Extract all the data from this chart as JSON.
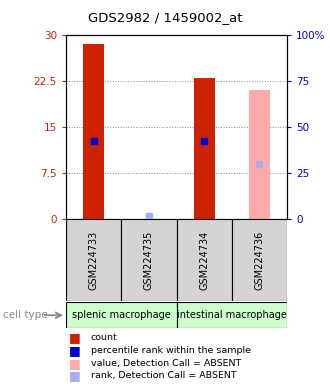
{
  "title": "GDS2982 / 1459002_at",
  "samples": [
    "GSM224733",
    "GSM224735",
    "GSM224734",
    "GSM224736"
  ],
  "cell_types": [
    {
      "label": "splenic macrophage",
      "start": 0,
      "end": 2,
      "color": "#ccffcc"
    },
    {
      "label": "intestinal macrophage",
      "start": 2,
      "end": 4,
      "color": "#ccffcc"
    }
  ],
  "bar_data": [
    {
      "x": 0,
      "count": 28.5,
      "rank_pct": 42.0,
      "absent_value": null,
      "absent_rank_pct": null
    },
    {
      "x": 1,
      "count": null,
      "rank_pct": null,
      "absent_value": null,
      "absent_rank_pct": 1.5
    },
    {
      "x": 2,
      "count": 23.0,
      "rank_pct": 42.0,
      "absent_value": null,
      "absent_rank_pct": null
    },
    {
      "x": 3,
      "count": null,
      "rank_pct": null,
      "absent_value": 21.0,
      "absent_rank_pct": 30.0
    }
  ],
  "ylim_left": [
    0,
    30
  ],
  "ylim_right": [
    0,
    100
  ],
  "yticks_left": [
    0,
    7.5,
    15,
    22.5,
    30
  ],
  "ytick_labels_left": [
    "0",
    "7.5",
    "15",
    "22.5",
    "30"
  ],
  "yticks_right": [
    0,
    25,
    50,
    75,
    100
  ],
  "ytick_labels_right": [
    "0",
    "25",
    "50",
    "75",
    "100%"
  ],
  "bar_width": 0.38,
  "bar_color_present": "#cc2200",
  "bar_color_absent": "#ffaaaa",
  "rank_color_present": "#0000cc",
  "rank_color_absent": "#aaaaee",
  "rank_marker_size": 5,
  "grid_color": "#888888",
  "label_color_left": "#cc2200",
  "label_color_right": "#0000cc",
  "legend_items": [
    {
      "color": "#cc2200",
      "label": "count"
    },
    {
      "color": "#0000cc",
      "label": "percentile rank within the sample"
    },
    {
      "color": "#ffaaaa",
      "label": "value, Detection Call = ABSENT"
    },
    {
      "color": "#aaaaee",
      "label": "rank, Detection Call = ABSENT"
    }
  ],
  "cell_type_label": "cell type"
}
